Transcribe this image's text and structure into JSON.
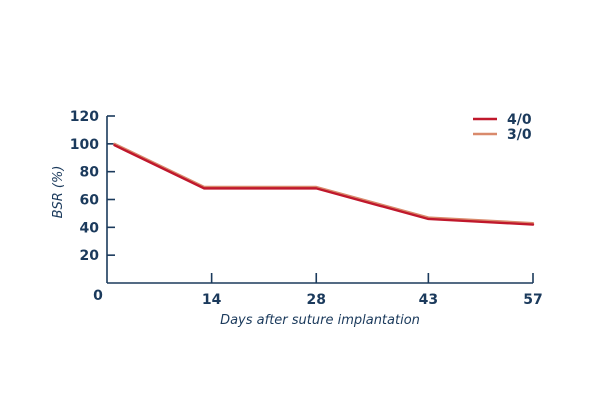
{
  "chart_data": {
    "type": "line",
    "xlabel": "Days after suture implantation",
    "ylabel": "BSR (%)",
    "x": [
      1,
      13,
      28,
      43,
      57
    ],
    "xlim": [
      0,
      57
    ],
    "ylim": [
      0,
      120
    ],
    "xticks": [
      "0",
      "14",
      "28",
      "43",
      "57"
    ],
    "xtick_values": [
      0,
      14,
      28,
      43,
      57
    ],
    "yticks": [
      "20",
      "40",
      "60",
      "80",
      "100",
      "120"
    ],
    "ytick_values": [
      20,
      40,
      60,
      80,
      100,
      120
    ],
    "legend_position": "top-right",
    "series": [
      {
        "name": "4/0",
        "color": "#c0182c",
        "values": [
          99,
          68,
          68,
          46,
          42
        ]
      },
      {
        "name": "3/0",
        "color": "#d98a6c",
        "values": [
          100,
          69,
          69,
          47,
          43
        ]
      }
    ]
  }
}
